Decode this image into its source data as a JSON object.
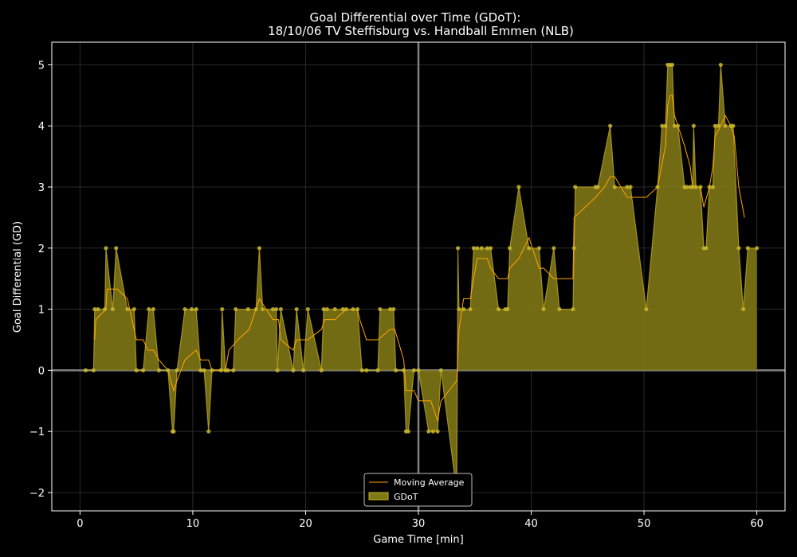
{
  "chart_data": {
    "type": "area",
    "title_line1": "Goal Differential over Time (GDoT):",
    "title_line2": "18/10/06 TV Steffisburg  vs.  Handball Emmen (NLB)",
    "xlabel": "Game Time [min]",
    "ylabel": "Goal Differential (GD)",
    "xlim": [
      -2.5,
      62.5
    ],
    "ylim": [
      -2.3,
      5.37
    ],
    "xticks": [
      0,
      10,
      20,
      30,
      40,
      50,
      60
    ],
    "yticks": [
      -2,
      -1,
      0,
      1,
      2,
      3,
      4,
      5
    ],
    "grid": true,
    "halftime_line_x": 30,
    "zero_line_y": 0,
    "legend_position": "bottom-center",
    "colors": {
      "background": "#000000",
      "fill": "#807716",
      "points": "#c9b52a",
      "moving_average": "#ffa500",
      "grid": "#2a2a2a",
      "axes": "#ffffff",
      "reference_lines": "#808080"
    },
    "series": [
      {
        "name": "GDoT",
        "points": [
          [
            0.5,
            0
          ],
          [
            1.2,
            0
          ],
          [
            1.3,
            1
          ],
          [
            1.6,
            1
          ],
          [
            2.2,
            1
          ],
          [
            2.3,
            2
          ],
          [
            2.9,
            1
          ],
          [
            3.2,
            2
          ],
          [
            4.2,
            1
          ],
          [
            4.8,
            1
          ],
          [
            5.0,
            0
          ],
          [
            5.6,
            0
          ],
          [
            6.1,
            1
          ],
          [
            6.5,
            1
          ],
          [
            7.0,
            0
          ],
          [
            7.8,
            0
          ],
          [
            8.2,
            -1
          ],
          [
            8.3,
            -1
          ],
          [
            8.6,
            0
          ],
          [
            9.3,
            1
          ],
          [
            9.9,
            1
          ],
          [
            10.3,
            1
          ],
          [
            10.7,
            0
          ],
          [
            11.0,
            0
          ],
          [
            11.4,
            -1
          ],
          [
            11.7,
            0
          ],
          [
            12.5,
            0
          ],
          [
            12.6,
            1
          ],
          [
            12.9,
            0
          ],
          [
            13.1,
            0
          ],
          [
            13.6,
            0
          ],
          [
            13.8,
            1
          ],
          [
            14.9,
            1
          ],
          [
            15.6,
            1
          ],
          [
            15.9,
            2
          ],
          [
            16.2,
            1
          ],
          [
            17.1,
            1
          ],
          [
            17.4,
            1
          ],
          [
            17.5,
            0
          ],
          [
            17.8,
            1
          ],
          [
            18.9,
            0
          ],
          [
            19.2,
            1
          ],
          [
            19.8,
            0
          ],
          [
            20.2,
            1
          ],
          [
            21.4,
            0
          ],
          [
            21.6,
            1
          ],
          [
            21.9,
            1
          ],
          [
            22.6,
            1
          ],
          [
            23.3,
            1
          ],
          [
            23.6,
            1
          ],
          [
            24.2,
            1
          ],
          [
            24.6,
            1
          ],
          [
            25.0,
            0
          ],
          [
            25.4,
            0
          ],
          [
            26.4,
            0
          ],
          [
            26.6,
            1
          ],
          [
            27.5,
            1
          ],
          [
            27.8,
            1
          ],
          [
            28.0,
            0
          ],
          [
            28.7,
            0
          ],
          [
            28.9,
            -1
          ],
          [
            29.1,
            -1
          ],
          [
            29.6,
            0
          ],
          [
            30.0,
            0
          ],
          [
            30.9,
            -1
          ],
          [
            31.3,
            -1
          ],
          [
            31.7,
            -1
          ],
          [
            32.0,
            0
          ],
          [
            33.4,
            -2
          ],
          [
            33.5,
            2
          ],
          [
            33.6,
            1
          ],
          [
            34.0,
            1
          ],
          [
            34.6,
            1
          ],
          [
            34.9,
            2
          ],
          [
            35.2,
            2
          ],
          [
            35.6,
            2
          ],
          [
            36.1,
            2
          ],
          [
            36.4,
            2
          ],
          [
            37.1,
            1
          ],
          [
            37.7,
            1
          ],
          [
            37.9,
            1
          ],
          [
            38.1,
            2
          ],
          [
            38.9,
            3
          ],
          [
            39.8,
            2
          ],
          [
            40.7,
            2
          ],
          [
            41.1,
            1
          ],
          [
            42.0,
            2
          ],
          [
            42.5,
            1
          ],
          [
            43.7,
            1
          ],
          [
            43.8,
            2
          ],
          [
            43.9,
            3
          ],
          [
            45.7,
            3
          ],
          [
            45.9,
            3
          ],
          [
            47.0,
            4
          ],
          [
            47.4,
            3
          ],
          [
            48.5,
            3
          ],
          [
            48.8,
            3
          ],
          [
            50.2,
            1
          ],
          [
            51.2,
            3
          ],
          [
            51.6,
            4
          ],
          [
            51.9,
            4
          ],
          [
            52.1,
            5
          ],
          [
            52.3,
            5
          ],
          [
            52.5,
            5
          ],
          [
            52.7,
            4
          ],
          [
            53.0,
            4
          ],
          [
            53.6,
            3
          ],
          [
            53.8,
            3
          ],
          [
            54.1,
            3
          ],
          [
            54.3,
            3
          ],
          [
            54.4,
            4
          ],
          [
            54.6,
            3
          ],
          [
            55.0,
            3
          ],
          [
            55.3,
            2
          ],
          [
            55.5,
            2
          ],
          [
            55.8,
            3
          ],
          [
            56.1,
            3
          ],
          [
            56.3,
            4
          ],
          [
            56.6,
            4
          ],
          [
            56.8,
            5
          ],
          [
            57.2,
            4
          ],
          [
            57.7,
            4
          ],
          [
            57.9,
            4
          ],
          [
            58.4,
            2
          ],
          [
            58.8,
            1
          ],
          [
            59.2,
            2
          ],
          [
            60.0,
            2
          ]
        ]
      },
      {
        "name": "Moving Average",
        "points": [
          [
            1.3,
            0.5
          ],
          [
            1.4,
            0.83
          ],
          [
            2.3,
            1.0
          ],
          [
            2.4,
            1.33
          ],
          [
            3.3,
            1.33
          ],
          [
            4.2,
            1.17
          ],
          [
            5.0,
            0.5
          ],
          [
            5.6,
            0.5
          ],
          [
            6.0,
            0.33
          ],
          [
            6.5,
            0.33
          ],
          [
            7.0,
            0.17
          ],
          [
            7.8,
            0.0
          ],
          [
            8.3,
            -0.33
          ],
          [
            8.6,
            -0.17
          ],
          [
            9.3,
            0.17
          ],
          [
            10.3,
            0.33
          ],
          [
            10.7,
            0.17
          ],
          [
            11.4,
            0.17
          ],
          [
            11.7,
            0.0
          ],
          [
            12.5,
            0.0
          ],
          [
            12.9,
            0.0
          ],
          [
            13.2,
            0.33
          ],
          [
            14.0,
            0.5
          ],
          [
            15.0,
            0.67
          ],
          [
            15.9,
            1.17
          ],
          [
            16.5,
            1.0
          ],
          [
            17.1,
            0.83
          ],
          [
            17.6,
            0.83
          ],
          [
            17.8,
            0.5
          ],
          [
            18.9,
            0.33
          ],
          [
            19.2,
            0.5
          ],
          [
            20.2,
            0.5
          ],
          [
            21.4,
            0.67
          ],
          [
            21.7,
            0.83
          ],
          [
            22.6,
            0.83
          ],
          [
            23.6,
            1.0
          ],
          [
            24.6,
            1.0
          ],
          [
            24.8,
            0.83
          ],
          [
            25.4,
            0.5
          ],
          [
            26.4,
            0.5
          ],
          [
            27.5,
            0.67
          ],
          [
            27.9,
            0.67
          ],
          [
            28.7,
            0.17
          ],
          [
            28.9,
            -0.33
          ],
          [
            29.6,
            -0.33
          ],
          [
            30.0,
            -0.5
          ],
          [
            31.1,
            -0.5
          ],
          [
            31.7,
            -0.83
          ],
          [
            32.0,
            -0.5
          ],
          [
            33.4,
            -0.17
          ],
          [
            33.6,
            0.67
          ],
          [
            34.0,
            1.17
          ],
          [
            34.6,
            1.17
          ],
          [
            34.9,
            1.5
          ],
          [
            35.2,
            1.83
          ],
          [
            36.1,
            1.83
          ],
          [
            36.4,
            1.67
          ],
          [
            37.1,
            1.5
          ],
          [
            37.9,
            1.5
          ],
          [
            38.1,
            1.67
          ],
          [
            38.9,
            1.83
          ],
          [
            39.8,
            2.17
          ],
          [
            40.7,
            1.67
          ],
          [
            41.1,
            1.67
          ],
          [
            42.0,
            1.5
          ],
          [
            43.7,
            1.5
          ],
          [
            43.8,
            2.5
          ],
          [
            45.7,
            2.83
          ],
          [
            46.5,
            3.0
          ],
          [
            47.0,
            3.17
          ],
          [
            47.4,
            3.17
          ],
          [
            48.5,
            2.83
          ],
          [
            50.2,
            2.83
          ],
          [
            51.2,
            3.0
          ],
          [
            51.9,
            3.67
          ],
          [
            52.1,
            4.33
          ],
          [
            52.3,
            4.5
          ],
          [
            52.5,
            4.5
          ],
          [
            52.7,
            4.17
          ],
          [
            53.6,
            3.67
          ],
          [
            54.1,
            3.33
          ],
          [
            54.3,
            3.0
          ],
          [
            55.0,
            3.0
          ],
          [
            55.3,
            2.67
          ],
          [
            55.8,
            3.0
          ],
          [
            56.1,
            3.33
          ],
          [
            56.3,
            3.83
          ],
          [
            56.8,
            4.0
          ],
          [
            57.2,
            4.17
          ],
          [
            57.7,
            4.0
          ],
          [
            58.0,
            3.83
          ],
          [
            58.4,
            3.0
          ],
          [
            58.9,
            2.5
          ]
        ]
      }
    ],
    "legend": [
      "Moving Average",
      "GDoT"
    ]
  }
}
